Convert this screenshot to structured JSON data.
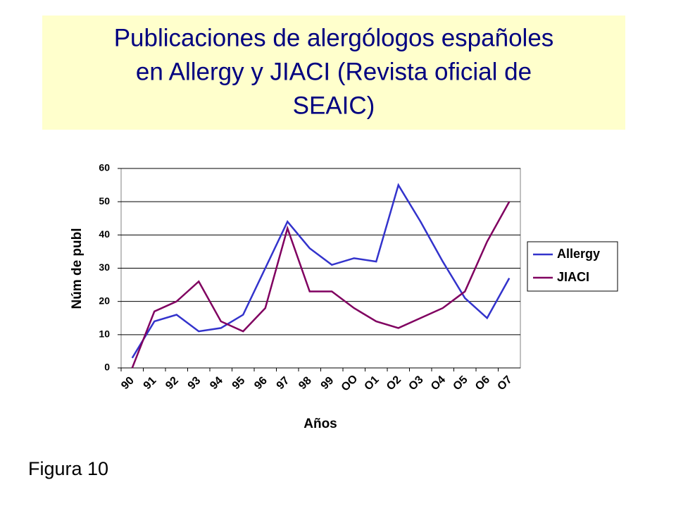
{
  "chart_data": {
    "type": "line",
    "title": [
      "Publicaciones de alergólogos españoles",
      "en Allergy y JIACI (Revista oficial de",
      "SEAIC)"
    ],
    "x_label": "Años",
    "y_label": "Núm de publ",
    "categories": [
      "90",
      "91",
      "92",
      "93",
      "94",
      "95",
      "96",
      "97",
      "98",
      "99",
      "OO",
      "O1",
      "O2",
      "O3",
      "O4",
      "O5",
      "O6",
      "O7"
    ],
    "series": [
      {
        "name": "Allergy",
        "color": "#3333cc",
        "values": [
          3,
          14,
          16,
          11,
          12,
          16,
          30,
          44,
          36,
          31,
          33,
          32,
          55,
          44,
          32,
          21,
          15,
          27
        ]
      },
      {
        "name": "JIACI",
        "color": "#800060",
        "values": [
          0,
          17,
          20,
          26,
          14,
          11,
          18,
          42,
          23,
          23,
          18,
          14,
          12,
          15,
          18,
          23,
          38,
          50
        ]
      }
    ],
    "ylim": [
      0,
      60
    ],
    "yticks": [
      0,
      10,
      20,
      30,
      40,
      50,
      60
    ],
    "grid": true,
    "legend": "right"
  },
  "caption": "Figura 10"
}
